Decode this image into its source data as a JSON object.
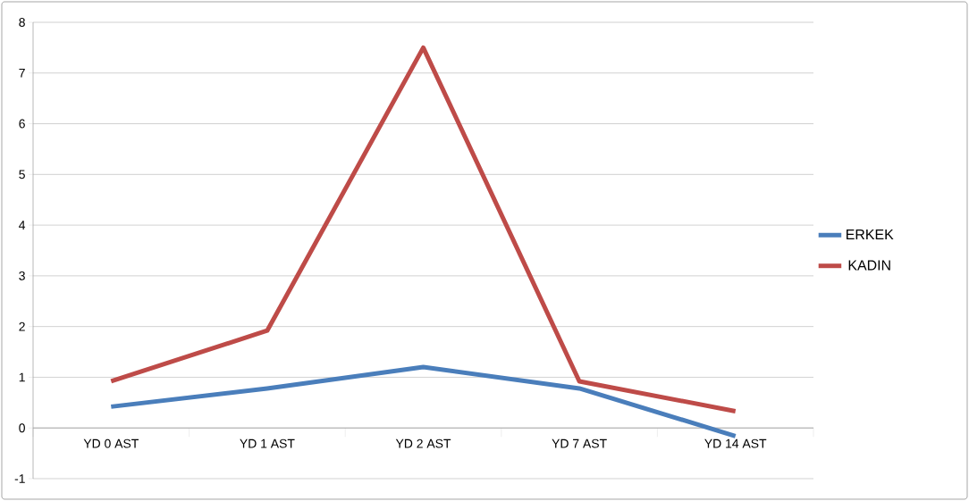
{
  "chart_data": {
    "type": "line",
    "categories": [
      "YD 0 AST",
      "YD 1 AST",
      "YD 2 AST",
      "YD 7 AST",
      "YD 14 AST"
    ],
    "series": [
      {
        "name": "ERKEK",
        "color": "#4a7ebb",
        "values": [
          0.42,
          0.78,
          1.2,
          0.78,
          -0.16
        ]
      },
      {
        "name": "KADIN",
        "color": "#be4b48",
        "values": [
          0.92,
          1.92,
          7.5,
          0.92,
          0.33
        ]
      }
    ],
    "ylim": [
      -1,
      8
    ],
    "yticks": [
      -1,
      0,
      1,
      2,
      3,
      4,
      5,
      6,
      7,
      8
    ],
    "grid": "y",
    "legend": "right",
    "marker": "none",
    "line_style": "solid"
  }
}
